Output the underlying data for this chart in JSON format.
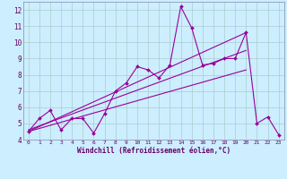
{
  "bg_color": "#cceeff",
  "line_color": "#990099",
  "grid_color": "#aacccc",
  "xlabel": "Windchill (Refroidissement éolien,°C)",
  "xlabel_color": "#660066",
  "tick_color": "#660066",
  "ylim": [
    4,
    12.5
  ],
  "xlim": [
    -0.5,
    23.5
  ],
  "yticks": [
    4,
    5,
    6,
    7,
    8,
    9,
    10,
    11,
    12
  ],
  "xticks": [
    0,
    1,
    2,
    3,
    4,
    5,
    6,
    7,
    8,
    9,
    10,
    11,
    12,
    13,
    14,
    15,
    16,
    17,
    18,
    19,
    20,
    21,
    22,
    23
  ],
  "main_x": [
    0,
    1,
    2,
    3,
    4,
    5,
    6,
    7,
    8,
    9,
    10,
    11,
    12,
    13,
    14,
    15,
    16,
    17,
    18,
    19,
    20,
    21,
    22,
    23
  ],
  "main_y": [
    4.5,
    5.3,
    5.8,
    4.6,
    5.3,
    5.3,
    4.4,
    5.6,
    7.0,
    7.5,
    8.5,
    8.3,
    7.8,
    8.6,
    12.2,
    10.9,
    8.6,
    8.7,
    9.0,
    9.0,
    10.6,
    5.0,
    5.4,
    4.3
  ],
  "trend1_x": [
    0,
    20
  ],
  "trend1_y": [
    4.5,
    10.6
  ],
  "trend2_x": [
    0,
    20
  ],
  "trend2_y": [
    4.5,
    8.3
  ],
  "trend3_x": [
    0,
    20
  ],
  "trend3_y": [
    4.6,
    9.5
  ]
}
